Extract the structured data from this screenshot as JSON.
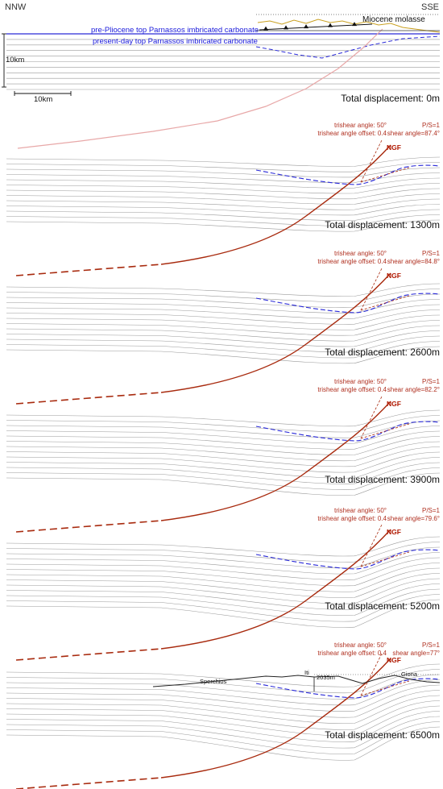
{
  "orientation": {
    "left": "NNW",
    "right": "SSE"
  },
  "legend": {
    "molasse": "Miocene molasse",
    "pre_pliocene": "pre-Pliocene top Parnassos imbricated carbonate",
    "present_day": "present-day top Parnassos imbricated carbonate"
  },
  "scale": {
    "vertical": "10km",
    "horizontal": "10km"
  },
  "colors": {
    "fault": "#a82a0e",
    "fault_faint": "#e8a8a8",
    "horizon_blue": "#2a2ad8",
    "layers": "#9a9a9a",
    "molasse": "#c9a020",
    "topography": "#222222"
  },
  "panels": [
    {
      "displacement_text": "Total displacement: 0m",
      "displacement_m": 0
    },
    {
      "displacement_text": "Total displacement: 1300m",
      "displacement_m": 1300,
      "trishear_angle": "trishear angle: 50°",
      "trishear_offset": "trishear angle offset: 0.4",
      "ps": "P/S=1",
      "shear_angle": "shear angle=87.4°",
      "fault_label": "NGF"
    },
    {
      "displacement_text": "Total displacement: 2600m",
      "displacement_m": 2600,
      "trishear_angle": "trishear angle: 50°",
      "trishear_offset": "trishear angle offset: 0.4",
      "ps": "P/S=1",
      "shear_angle": "shear angle=84.8°",
      "fault_label": "NGF"
    },
    {
      "displacement_text": "Total displacement: 3900m",
      "displacement_m": 3900,
      "trishear_angle": "trishear angle: 50°",
      "trishear_offset": "trishear angle offset: 0.4",
      "ps": "P/S=1",
      "shear_angle": "shear angle=82.2°",
      "fault_label": "NGF"
    },
    {
      "displacement_text": "Total displacement: 5200m",
      "displacement_m": 5200,
      "trishear_angle": "trishear angle: 50°",
      "trishear_offset": "trishear angle offset: 0.4",
      "ps": "P/S=1",
      "shear_angle": "shear angle=79.6°",
      "fault_label": "NGF"
    },
    {
      "displacement_text": "Total displacement: 6500m",
      "displacement_m": 6500,
      "trishear_angle": "trishear angle: 50°",
      "trishear_offset": "trishear angle offset: 0.4",
      "ps": "P/S=1",
      "shear_angle": "shear angle=77°",
      "fault_label": "NGF"
    }
  ],
  "topography": {
    "sperchios": "Sperchios",
    "iti": "Iti",
    "giona": "Giona",
    "relief": "2035m"
  }
}
